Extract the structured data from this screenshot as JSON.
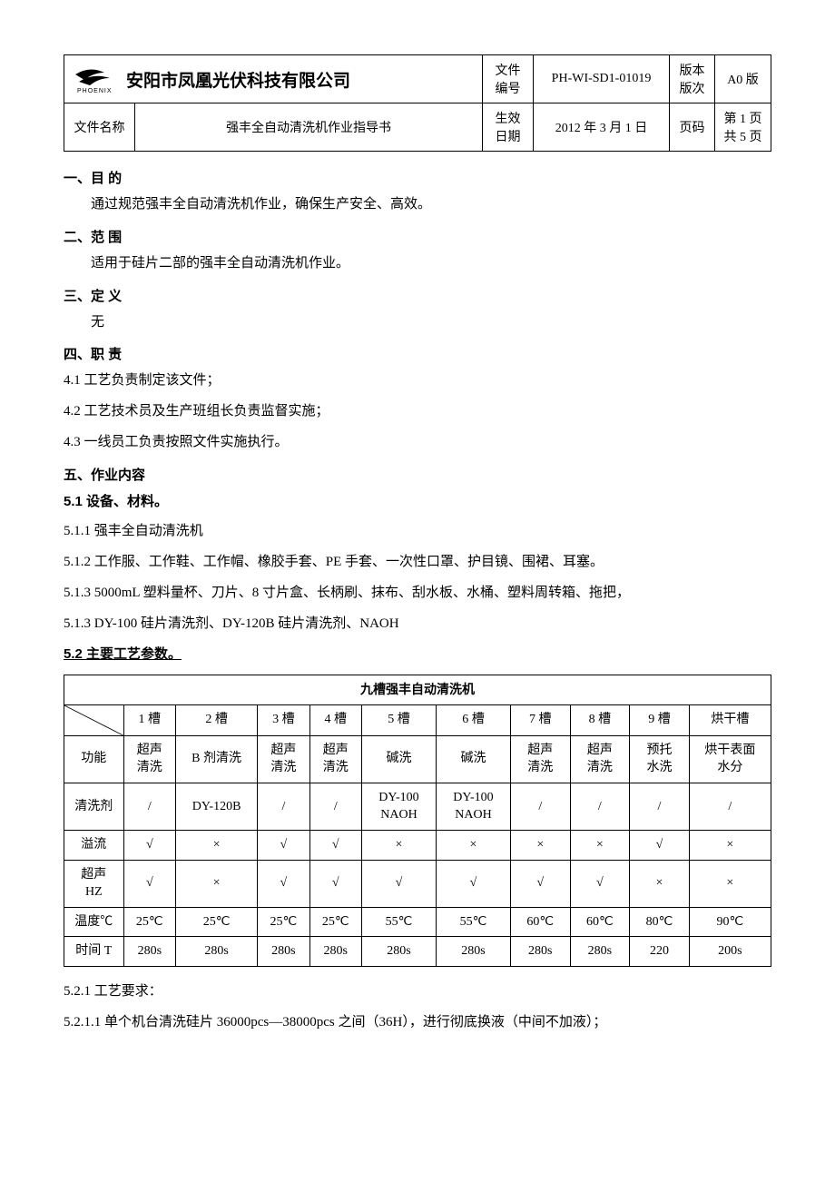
{
  "header": {
    "logo_text": "PHOENIX",
    "company": "安阳市凤凰光伏科技有限公司",
    "doc_no_label": "文件\n编号",
    "doc_no": "PH-WI-SD1-01019",
    "version_label": "版本\n版次",
    "version": "A0 版",
    "doc_name_label": "文件名称",
    "doc_name": "强丰全自动清洗机作业指导书",
    "effective_label": "生效日期",
    "effective_date": "2012 年 3 月 1 日",
    "page_label": "页码",
    "page": "第 1 页\n共 5 页"
  },
  "sections": {
    "s1_title": "一、目 的",
    "s1_body": "通过规范强丰全自动清洗机作业，确保生产安全、高效。",
    "s2_title": "二、范 围",
    "s2_body": "适用于硅片二部的强丰全自动清洗机作业。",
    "s3_title": "三、定 义",
    "s3_body": "无",
    "s4_title": "四、职 责",
    "s4_1": "4.1 工艺负责制定该文件；",
    "s4_2": "4.2 工艺技术员及生产班组长负责监督实施；",
    "s4_3": "4.3 一线员工负责按照文件实施执行。",
    "s5_title": "五、作业内容",
    "s5_1_title": "5.1 设备、材料。",
    "s5_1_1": "5.1.1 强丰全自动清洗机",
    "s5_1_2": "5.1.2 工作服、工作鞋、工作帽、橡胶手套、PE 手套、一次性口罩、护目镜、围裙、耳塞。",
    "s5_1_3": "5.1.3 5000mL 塑料量杯、刀片、8 寸片盒、长柄刷、抹布、刮水板、水桶、塑料周转箱、拖把，",
    "s5_1_3b": "5.1.3 DY-100 硅片清洗剂、DY-120B 硅片清洗剂、NAOH",
    "s5_2_title": "5.2 主要工艺参数。",
    "s5_2_1": "5.2.1 工艺要求：",
    "s5_2_1_1": "5.2.1.1 单个机台清洗硅片 36000pcs—38000pcs 之间（36H），进行彻底换液（中间不加液）；"
  },
  "proc_table": {
    "title": "九槽强丰自动清洗机",
    "col_headers": [
      "1 槽",
      "2 槽",
      "3 槽",
      "4 槽",
      "5 槽",
      "6 槽",
      "7 槽",
      "8 槽",
      "9 槽",
      "烘干槽"
    ],
    "row_labels": [
      "功能",
      "清洗剂",
      "溢流",
      "超声\nHZ",
      "温度℃",
      "时间 T"
    ],
    "rows": {
      "function": [
        "超声\n清洗",
        "B 剂清洗",
        "超声\n清洗",
        "超声\n清洗",
        "碱洗",
        "碱洗",
        "超声\n清洗",
        "超声\n清洗",
        "预托\n水洗",
        "烘干表面\n水分"
      ],
      "cleaner": [
        "/",
        "DY-120B",
        "/",
        "/",
        "DY-100\nNAOH",
        "DY-100\nNAOH",
        "/",
        "/",
        "/",
        "/"
      ],
      "overflow": [
        "√",
        "×",
        "√",
        "√",
        "×",
        "×",
        "×",
        "×",
        "√",
        "×"
      ],
      "ultrasonic": [
        "√",
        "×",
        "√",
        "√",
        "√",
        "√",
        "√",
        "√",
        "×",
        "×"
      ],
      "temp": [
        "25℃",
        "25℃",
        "25℃",
        "25℃",
        "55℃",
        "55℃",
        "60℃",
        "60℃",
        "80℃",
        "90℃"
      ],
      "time": [
        "280s",
        "280s",
        "280s",
        "280s",
        "280s",
        "280s",
        "280s",
        "280s",
        "220",
        "200s"
      ]
    },
    "col_widths_pct": [
      8,
      7,
      11,
      7,
      7,
      10,
      10,
      8,
      8,
      8,
      11
    ]
  }
}
